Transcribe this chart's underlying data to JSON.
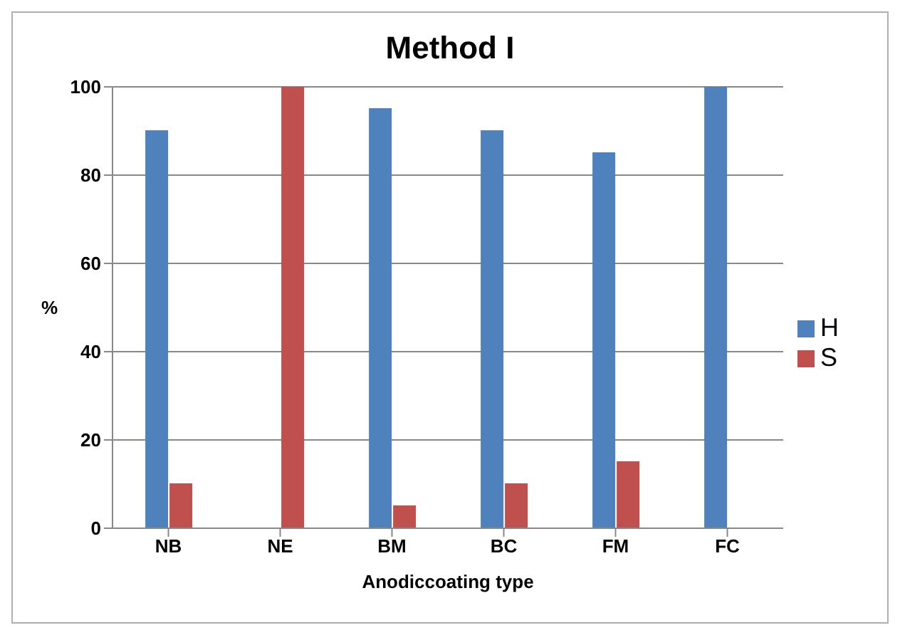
{
  "chart_data": {
    "type": "bar",
    "title": "Method I",
    "xlabel": "Anodiccoating type",
    "ylabel": "%",
    "categories": [
      "NB",
      "NE",
      "BM",
      "BC",
      "FM",
      "FC"
    ],
    "series": [
      {
        "name": "H",
        "color": "#4f81bd",
        "values": [
          90,
          0,
          95,
          90,
          85,
          100
        ]
      },
      {
        "name": "S",
        "color": "#c0504d",
        "values": [
          10,
          100,
          5,
          10,
          15,
          0
        ]
      }
    ],
    "ylim": [
      0,
      100
    ],
    "yticks": [
      0,
      20,
      40,
      60,
      80,
      100
    ],
    "grid": "y",
    "legend": "right"
  }
}
